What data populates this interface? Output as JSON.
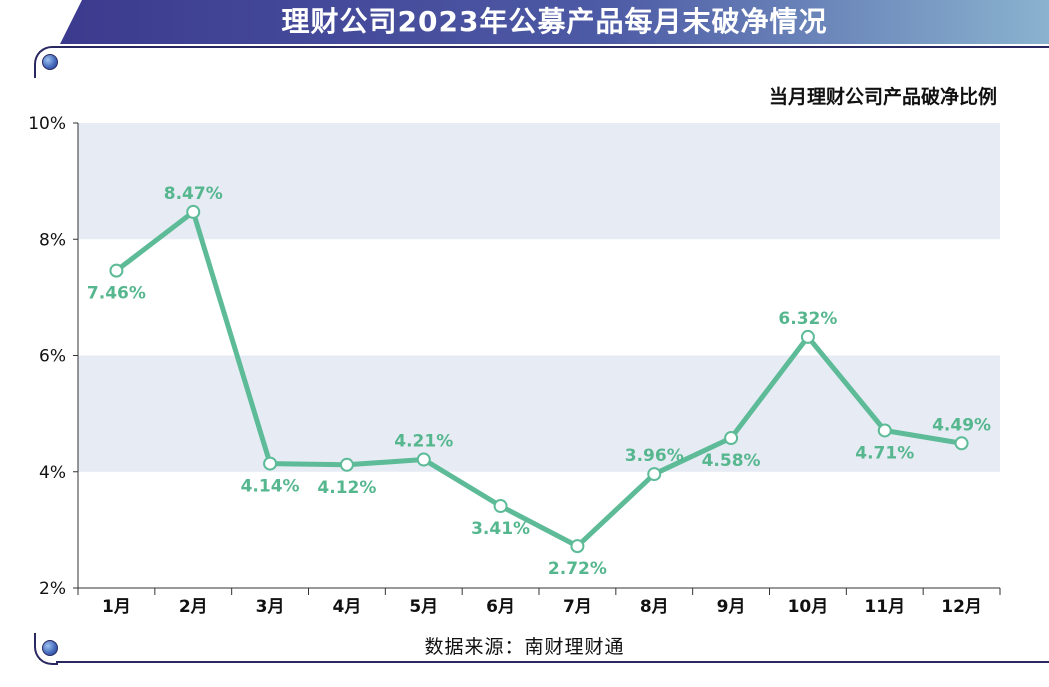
{
  "title": "理财公司2023年公募产品每月末破净情况",
  "source": "数据来源：南财理财通",
  "colors": {
    "line": "#5dbb98",
    "label": "#56b78f",
    "band": "#e6ebf4",
    "banner_start": "#3c3a8e",
    "banner_end": "#8ab3cf"
  },
  "chart_data": {
    "type": "line",
    "title": "当月理财公司产品破净比例",
    "categories": [
      "1月",
      "2月",
      "3月",
      "4月",
      "5月",
      "6月",
      "7月",
      "8月",
      "9月",
      "10月",
      "11月",
      "12月"
    ],
    "series": [
      {
        "values": [
          7.46,
          8.47,
          4.14,
          4.12,
          4.21,
          3.41,
          2.72,
          3.96,
          4.58,
          6.32,
          4.71,
          4.49
        ],
        "labels": [
          "7.46%",
          "8.47%",
          "4.14%",
          "4.12%",
          "4.21%",
          "3.41%",
          "2.72%",
          "3.96%",
          "4.58%",
          "6.32%",
          "4.71%",
          "4.49%"
        ],
        "label_position": [
          "below",
          "above",
          "below",
          "below",
          "above",
          "below",
          "below",
          "above",
          "below",
          "above",
          "below",
          "above"
        ]
      }
    ],
    "ylim": [
      2,
      10
    ],
    "yticks": [
      "2%",
      "4%",
      "6%",
      "8%",
      "10%"
    ],
    "ytick_values": [
      2,
      4,
      6,
      8,
      10
    ],
    "grid": "alternating horizontal bands",
    "markers": "hollow circles"
  }
}
